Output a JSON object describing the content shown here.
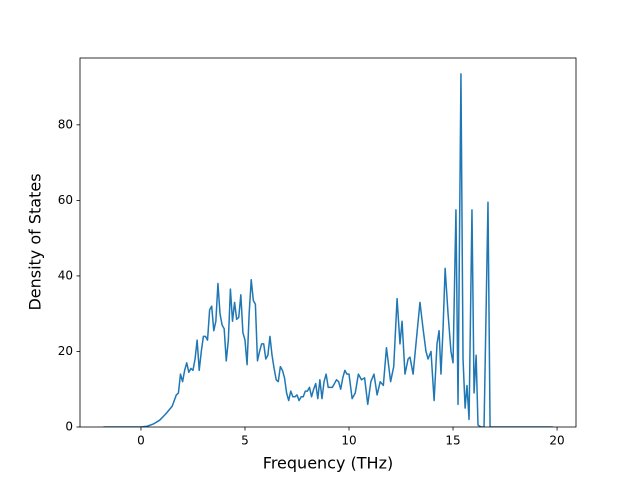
{
  "chart_data": {
    "type": "line",
    "xlabel": "Frequency (THz)",
    "ylabel": "Density of States",
    "x": [
      -1.8,
      0,
      0.3,
      0.6,
      0.9,
      1.2,
      1.5,
      1.7,
      1.8,
      1.9,
      2.0,
      2.1,
      2.2,
      2.3,
      2.4,
      2.5,
      2.6,
      2.7,
      2.8,
      2.9,
      3.0,
      3.1,
      3.2,
      3.3,
      3.4,
      3.5,
      3.6,
      3.7,
      3.8,
      3.9,
      4.0,
      4.1,
      4.2,
      4.3,
      4.4,
      4.5,
      4.6,
      4.7,
      4.8,
      4.9,
      5.0,
      5.1,
      5.2,
      5.3,
      5.4,
      5.5,
      5.6,
      5.7,
      5.8,
      5.9,
      6.0,
      6.1,
      6.2,
      6.3,
      6.4,
      6.5,
      6.6,
      6.7,
      6.8,
      6.9,
      7.0,
      7.1,
      7.2,
      7.3,
      7.4,
      7.5,
      7.6,
      7.7,
      7.8,
      7.9,
      8.0,
      8.1,
      8.2,
      8.3,
      8.4,
      8.5,
      8.6,
      8.7,
      8.8,
      8.9,
      9.0,
      9.1,
      9.2,
      9.3,
      9.4,
      9.5,
      9.6,
      9.7,
      9.8,
      9.9,
      10.0,
      10.15,
      10.3,
      10.45,
      10.6,
      10.75,
      10.9,
      11.05,
      11.2,
      11.35,
      11.5,
      11.65,
      11.8,
      12.0,
      12.15,
      12.31,
      12.45,
      12.55,
      12.69,
      12.84,
      12.93,
      13.08,
      13.27,
      13.41,
      13.56,
      13.7,
      13.8,
      13.94,
      14.09,
      14.23,
      14.33,
      14.42,
      14.52,
      14.62,
      14.76,
      14.9,
      15.0,
      15.14,
      15.24,
      15.38,
      15.48,
      15.58,
      15.67,
      15.77,
      15.91,
      16.01,
      16.11,
      16.2,
      16.35,
      16.49,
      16.68,
      16.78,
      19.8
    ],
    "series": [
      {
        "color": "#1f77b4",
        "values": [
          0,
          0,
          0.2,
          0.8,
          1.8,
          3.5,
          5.5,
          8.5,
          9,
          14,
          12,
          15,
          17,
          14.5,
          15.5,
          15,
          18,
          23,
          15,
          20,
          24,
          24,
          23,
          31,
          32,
          25.5,
          28,
          38,
          30,
          27,
          26,
          17.5,
          23,
          36.5,
          28,
          33,
          28.5,
          29,
          35,
          25,
          23,
          16.5,
          30,
          39,
          33.5,
          32.5,
          17.5,
          20,
          22,
          22,
          18,
          19,
          24,
          19,
          15.5,
          12.5,
          12,
          16,
          15,
          13,
          9,
          7,
          9.5,
          8,
          8,
          8.5,
          7,
          8,
          8,
          9.5,
          9.5,
          10.5,
          8,
          10,
          11.5,
          7.5,
          12.5,
          7.5,
          12,
          14,
          10.5,
          10.5,
          10.5,
          11.5,
          12.5,
          12,
          10,
          13,
          15,
          14,
          14,
          7.5,
          9,
          14,
          12.5,
          13,
          6,
          12,
          14,
          8.5,
          12,
          11,
          21,
          12,
          16,
          34,
          22,
          28,
          14,
          18,
          18.5,
          14,
          25,
          33,
          26,
          20,
          18,
          20,
          7,
          22,
          25.5,
          14,
          26,
          42,
          30,
          20,
          17,
          57.5,
          6,
          93.5,
          18,
          5,
          11,
          2,
          57.5,
          9,
          19,
          0.5,
          0,
          0,
          59.5,
          0,
          0
        ]
      }
    ],
    "xlim": [
      -2.93,
      20.91
    ],
    "ylim": [
      0,
      97.7
    ],
    "xticks": [
      0,
      5,
      10,
      15,
      20
    ],
    "yticks": [
      0,
      20,
      40,
      60,
      80
    ]
  }
}
